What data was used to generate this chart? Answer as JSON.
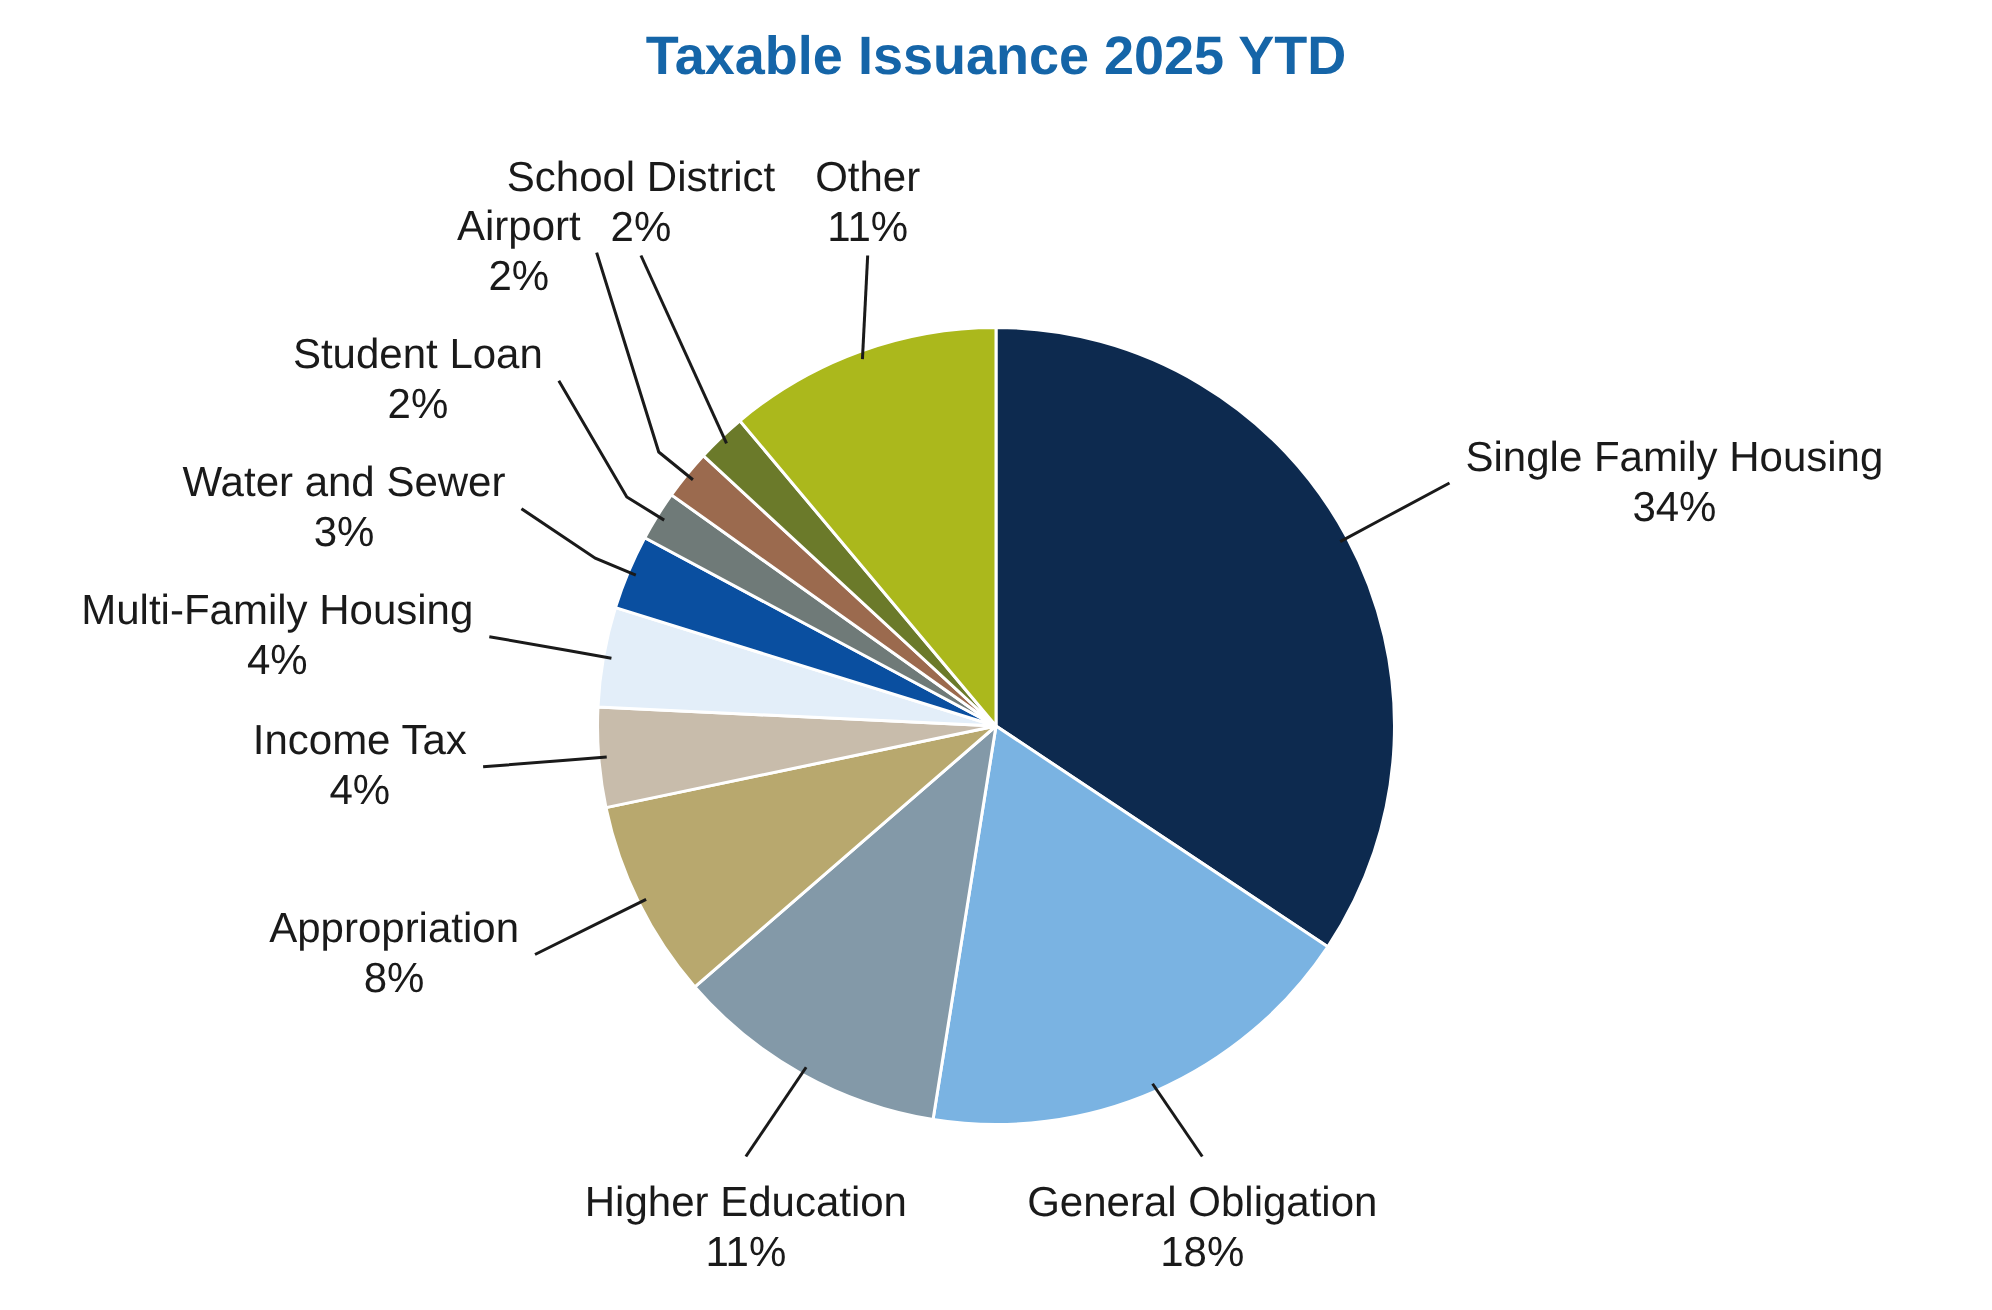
{
  "chart_data": {
    "type": "pie",
    "title": "Taxable Issuance 2025 YTD",
    "categories": [
      "Single Family Housing",
      "General Obligation",
      "Higher Education",
      "Appropriation",
      "Income Tax",
      "Multi-Family Housing",
      "Water and Sewer",
      "Student Loan",
      "Airport",
      "School District",
      "Other"
    ],
    "values": [
      34,
      18,
      11,
      8,
      4,
      4,
      3,
      2,
      2,
      2,
      11
    ],
    "value_labels": [
      "34%",
      "18%",
      "11%",
      "8%",
      "4%",
      "4%",
      "3%",
      "2%",
      "2%",
      "2%",
      "11%"
    ],
    "colors": [
      "#0d2a4f",
      "#7ab3e2",
      "#8399a8",
      "#b8a86e",
      "#c8bcab",
      "#e3eef9",
      "#0a4fa0",
      "#6f7a78",
      "#9b6a4e",
      "#6b7a2a",
      "#abb81c"
    ],
    "legend": false
  }
}
